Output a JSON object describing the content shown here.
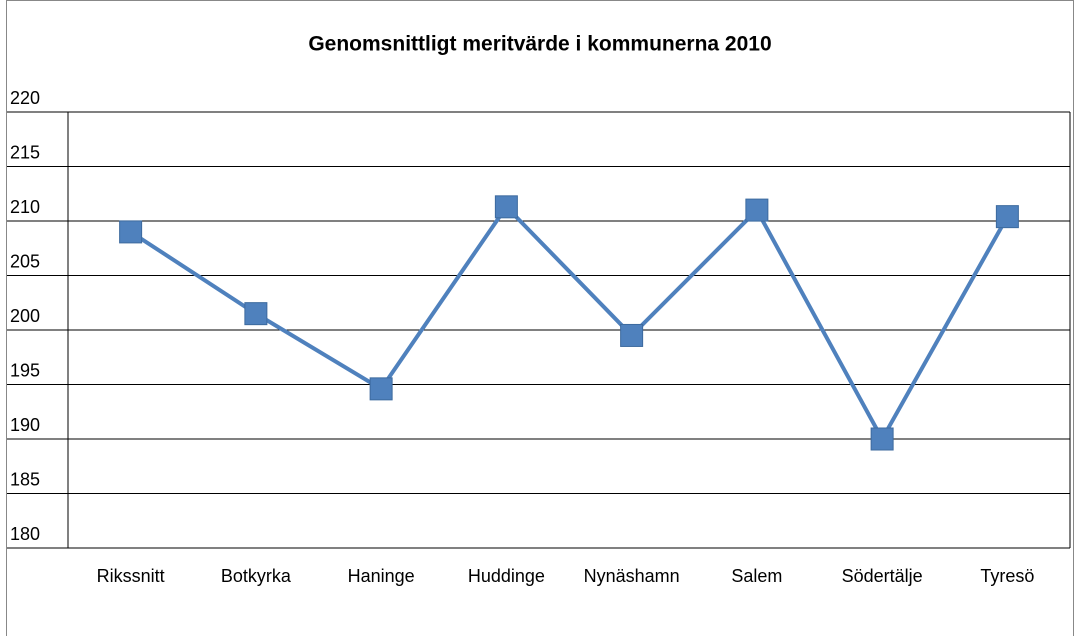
{
  "chart_data": {
    "type": "line",
    "title": "Genomsnittligt meritvärde i kommunerna 2010",
    "categories": [
      "Rikssnitt",
      "Botkyrka",
      "Haninge",
      "Huddinge",
      "Nynäshamn",
      "Salem",
      "Södertälje",
      "Tyresö"
    ],
    "values": [
      209,
      201.5,
      194.6,
      211.3,
      199.5,
      211,
      190,
      210.4
    ],
    "color": "#4f81bd",
    "marker": "square",
    "ylim": [
      180,
      220
    ],
    "yticks": [
      180,
      185,
      190,
      195,
      200,
      205,
      210,
      215,
      220
    ],
    "grid": true
  }
}
